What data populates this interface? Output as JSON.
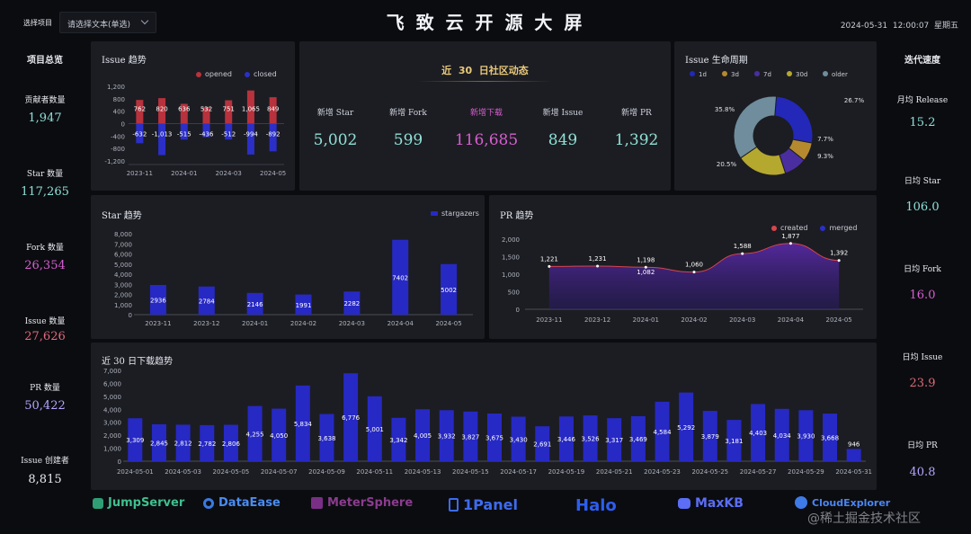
{
  "header": {
    "select_label": "选择项目",
    "select_placeholder": "请选择文本(单选)",
    "title": "飞 致 云 开 源 大 屏",
    "datetime": "2024-05-31  12:00:07  星期五"
  },
  "left": {
    "title": "项目总览",
    "items": [
      {
        "label": "贡献者数量",
        "value": "1,947",
        "color": "#8fe0d8"
      },
      {
        "label": "Star 数量",
        "value": "117,265",
        "color": "#8fe0d8"
      },
      {
        "label": "Fork 数量",
        "value": "26,354",
        "color": "#d65fd0"
      },
      {
        "label": "Issue 数量",
        "value": "27,626",
        "color": "#e06b7a"
      },
      {
        "label": "PR 数量",
        "value": "50,422",
        "color": "#b5a6ff"
      },
      {
        "label": "Issue 创建者",
        "value": "8,815",
        "color": "#e8eaf0"
      }
    ]
  },
  "right": {
    "title": "迭代速度",
    "items": [
      {
        "label": "月均 Release",
        "value": "15.2",
        "color": "#8fe0d8"
      },
      {
        "label": "日均 Star",
        "value": "106.0",
        "color": "#8fe0d8"
      },
      {
        "label": "日均 Fork",
        "value": "16.0",
        "color": "#d65fd0"
      },
      {
        "label": "日均 Issue",
        "value": "23.9",
        "color": "#e06b7a"
      },
      {
        "label": "日均 PR",
        "value": "40.8",
        "color": "#b5a6ff"
      }
    ]
  },
  "community": {
    "title": "近  30  日社区动态",
    "items": [
      {
        "label": "新增 Star",
        "value": "5,002",
        "color": "#8fe0d8"
      },
      {
        "label": "新增 Fork",
        "value": "599",
        "color": "#8fe0d8"
      },
      {
        "label": "新增下载",
        "value": "116,685",
        "color": "#d65fd0"
      },
      {
        "label": "新增 Issue",
        "value": "849",
        "color": "#8fe0d8"
      },
      {
        "label": "新增 PR",
        "value": "1,392",
        "color": "#8fe0d8"
      }
    ]
  },
  "issue_trend": {
    "title": "Issue 趋势",
    "legend_opened": "opened",
    "legend_closed": "closed"
  },
  "issue_life": {
    "title": "Issue 生命周期"
  },
  "star_trend": {
    "title": "Star  趋势",
    "legend": "stargazers"
  },
  "pr_trend": {
    "title": "PR  趋势",
    "legend_created": "created",
    "legend_merged": "merged"
  },
  "download_trend": {
    "title": "近 30 日下载趋势"
  },
  "logos": [
    "JumpServer",
    "DataEase",
    "MeterSphere",
    "1Panel",
    "Halo",
    "MaxKB",
    "CloudExplorer"
  ],
  "watermark": "@稀土掘金技术社区",
  "chart_data": [
    {
      "id": "issue-trend",
      "type": "bar",
      "title": "Issue 趋势",
      "categories": [
        "2023-11",
        "2023-12",
        "2024-01",
        "2024-02",
        "2024-03",
        "2024-04",
        "2024-05"
      ],
      "tick_labels": [
        "2023-11",
        "2024-01",
        "2024-03",
        "2024-05"
      ],
      "series": [
        {
          "name": "opened",
          "values": [
            762,
            820,
            636,
            532,
            751,
            1065,
            849
          ],
          "color": "#b8323d"
        },
        {
          "name": "closed",
          "values": [
            -632,
            -1013,
            -515,
            -436,
            -512,
            -994,
            -892
          ],
          "color": "#2b2fc7"
        }
      ],
      "yticks": [
        1200,
        800,
        400,
        0,
        -400,
        -800,
        -1200
      ],
      "yticklabels": [
        "1,200",
        "800",
        "400",
        "0",
        "-400",
        "-800",
        "-1,200"
      ],
      "ylim": [
        -1200,
        1200
      ]
    },
    {
      "id": "issue-lifecycle",
      "type": "pie",
      "title": "Issue 生命周期",
      "labels": [
        "1d",
        "3d",
        "7d",
        "30d",
        "older"
      ],
      "values": [
        26.7,
        7.7,
        9.3,
        20.5,
        35.8
      ],
      "value_labels": [
        "26.7%",
        "7.7%",
        "9.3%",
        "20.5%",
        "35.8%"
      ],
      "colors": [
        "#2328b8",
        "#b58a2e",
        "#4a2ea0",
        "#b5a82e",
        "#6f8d9c"
      ]
    },
    {
      "id": "star-trend",
      "type": "bar",
      "title": "Star  趋势",
      "categories": [
        "2023-11",
        "2023-12",
        "2024-01",
        "2024-02",
        "2024-03",
        "2024-04",
        "2024-05"
      ],
      "series": [
        {
          "name": "stargazers",
          "values": [
            2936,
            2784,
            2146,
            1991,
            2282,
            7402,
            5002
          ],
          "color": "#2729c4"
        }
      ],
      "yticks": [
        8000,
        7000,
        6000,
        5000,
        4000,
        3000,
        2000,
        1000,
        0
      ],
      "yticklabels": [
        "8,000",
        "7,000",
        "6,000",
        "5,000",
        "4,000",
        "3,000",
        "2,000",
        "1,000",
        "0"
      ],
      "ylim": [
        0,
        8000
      ]
    },
    {
      "id": "pr-trend",
      "type": "area",
      "title": "PR  趋势",
      "categories": [
        "2023-11",
        "2023-12",
        "2024-01",
        "2024-02",
        "2024-03",
        "2024-04",
        "2024-05"
      ],
      "series": [
        {
          "name": "created",
          "values": [
            1221,
            1231,
            1198,
            1060,
            1588,
            1877,
            1392
          ],
          "color": "#d8454d"
        },
        {
          "name": "merged",
          "values": [
            null,
            null,
            1082,
            null,
            null,
            null,
            null
          ],
          "color": "#2b2fc7"
        }
      ],
      "yticks": [
        2000,
        1500,
        1000,
        500,
        0
      ],
      "yticklabels": [
        "2,000",
        "1,500",
        "1,000",
        "500",
        "0"
      ],
      "ylim": [
        0,
        2000
      ]
    },
    {
      "id": "download-trend",
      "type": "bar",
      "title": "近 30 日下载趋势",
      "categories": [
        "2024-05-01",
        "2024-05-02",
        "2024-05-03",
        "2024-05-04",
        "2024-05-05",
        "2024-05-06",
        "2024-05-07",
        "2024-05-08",
        "2024-05-09",
        "2024-05-10",
        "2024-05-11",
        "2024-05-12",
        "2024-05-13",
        "2024-05-14",
        "2024-05-15",
        "2024-05-16",
        "2024-05-17",
        "2024-05-18",
        "2024-05-19",
        "2024-05-20",
        "2024-05-21",
        "2024-05-22",
        "2024-05-23",
        "2024-05-24",
        "2024-05-25",
        "2024-05-26",
        "2024-05-27",
        "2024-05-28",
        "2024-05-29",
        "2024-05-30",
        "2024-05-31"
      ],
      "tick_labels": [
        "2024-05-01",
        "2024-05-03",
        "2024-05-05",
        "2024-05-07",
        "2024-05-09",
        "2024-05-11",
        "2024-05-13",
        "2024-05-15",
        "2024-05-17",
        "2024-05-19",
        "2024-05-21",
        "2024-05-23",
        "2024-05-25",
        "2024-05-27",
        "2024-05-29",
        "2024-05-31"
      ],
      "series": [
        {
          "name": "downloads",
          "values": [
            3309,
            2845,
            2812,
            2782,
            2806,
            4255,
            4050,
            5834,
            3638,
            6776,
            5001,
            3342,
            4005,
            3932,
            3827,
            3675,
            3430,
            2691,
            3446,
            3526,
            3317,
            3469,
            4584,
            5292,
            3879,
            3181,
            4403,
            4034,
            3930,
            3668,
            946
          ],
          "color": "#2729c4"
        }
      ],
      "yticks": [
        7000,
        6000,
        5000,
        4000,
        3000,
        2000,
        1000,
        0
      ],
      "yticklabels": [
        "7,000",
        "6,000",
        "5,000",
        "4,000",
        "3,000",
        "2,000",
        "1,000",
        "0"
      ],
      "ylim": [
        0,
        7000
      ]
    }
  ]
}
